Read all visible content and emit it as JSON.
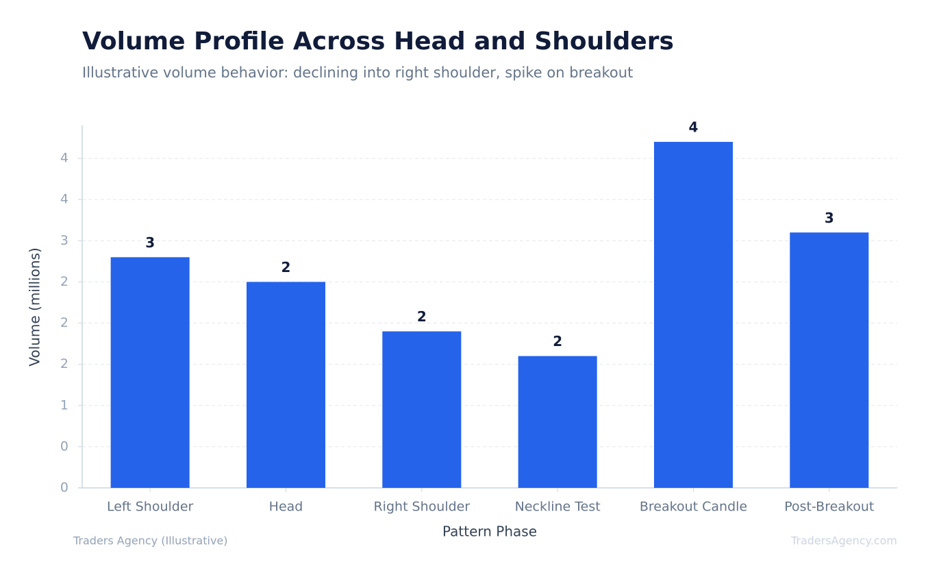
{
  "chart_data": {
    "type": "bar",
    "title": "Volume Profile Across Head and Shoulders",
    "subtitle": "Illustrative volume behavior: declining into right shoulder, spike on breakout",
    "x_label": "Pattern Phase",
    "y_label": "Volume (millions)",
    "categories": [
      "Left Shoulder",
      "Head",
      "Right Shoulder",
      "Neckline Test",
      "Breakout Candle",
      "Post-Breakout"
    ],
    "values": [
      2.8,
      2.5,
      1.9,
      1.6,
      4.2,
      3.1
    ],
    "value_labels": [
      "3",
      "2",
      "2",
      "2",
      "4",
      "3"
    ],
    "color": "#2563eb",
    "ylim": [
      0,
      4.4
    ],
    "yticks": [
      0,
      {
        "value": 0.5,
        "label": "0"
      },
      1,
      {
        "value": 1.5,
        "label": "2"
      },
      2,
      {
        "value": 2.5,
        "label": "2"
      },
      3,
      {
        "value": 3.5,
        "label": "4"
      },
      4
    ],
    "grid": true,
    "source": "Traders Agency (Illustrative)",
    "watermark": "TradersAgency.com"
  }
}
